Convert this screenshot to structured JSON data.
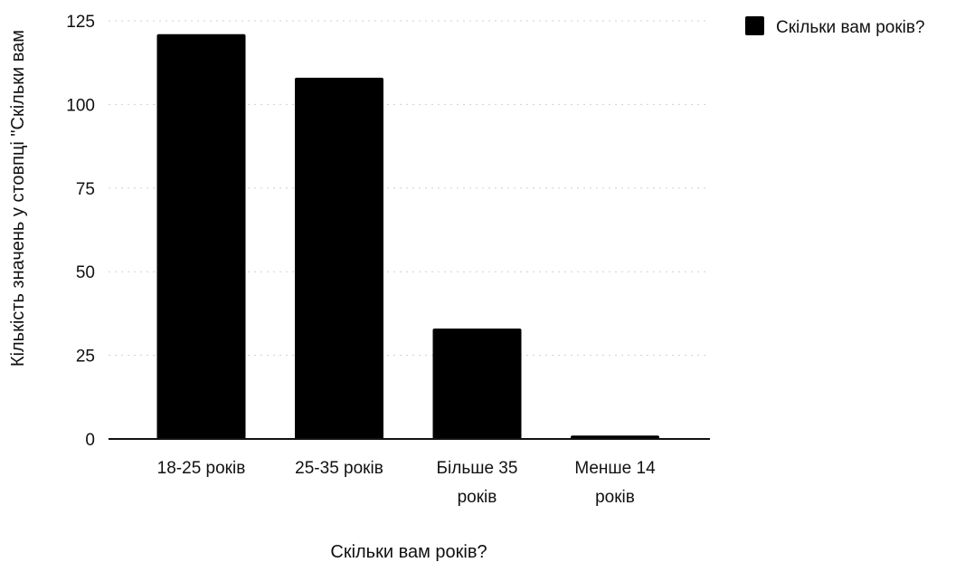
{
  "chart_data": {
    "type": "bar",
    "categories": [
      [
        "18-25 років"
      ],
      [
        "25-35 років"
      ],
      [
        "Більше 35",
        "років"
      ],
      [
        "Менше 14",
        "років"
      ]
    ],
    "series": [
      {
        "name": "Скільки вам років?",
        "values": [
          121,
          108,
          33,
          1
        ],
        "color": "#000000"
      }
    ],
    "xlabel": "Скільки вам років?",
    "ylabel": "Кількість значень у стовпці \"Скільки вам",
    "ylim": [
      0,
      125
    ],
    "yticks": [
      0,
      25,
      50,
      75,
      100,
      125
    ],
    "grid": true,
    "legend_position": "top-right"
  }
}
